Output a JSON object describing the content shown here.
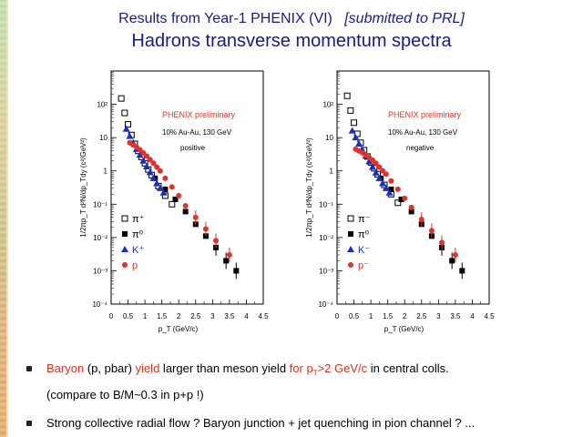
{
  "slide": {
    "title_line1_main": "Results from Year-1 PHENIX (VI)",
    "title_line1_submitted": "[submitted to PRL]",
    "title_line2": "Hadrons transverse momentum spectra"
  },
  "bullets": {
    "b1_part1": "Baryon",
    "b1_part2": " (p, pbar) ",
    "b1_part3": "yield",
    "b1_part4": " larger than meson yield ",
    "b1_part5_pre": "for p",
    "b1_part5_sub": "T",
    "b1_part5_post": ">2 GeV/c",
    "b1_part6": " in central colls.",
    "b1_line2": "(compare to B/M~0.3 in p+p !)",
    "b2": "Strong collective radial flow ? Baryon junction + jet quenching in pion channel ? ..."
  },
  "colors": {
    "title": "#1a1a8c",
    "red": "#e0322a",
    "blue": "#1a2fbf",
    "black": "#000000"
  },
  "chart_data": [
    {
      "type": "scatter",
      "panel": "positive",
      "title": "PHENIX preliminary",
      "condition": "10% Au-Au, 130 GeV",
      "charge_label": "positive",
      "xlabel": "p_T (GeV/c)",
      "ylabel": "1/2πp_T d²N/dp_Tdy (c²/GeV²)",
      "xlim": [
        0,
        4.5
      ],
      "ylim": [
        0.0001,
        1000
      ],
      "yscale": "log",
      "xticks": [
        "0",
        "0.5",
        "1",
        "1.5",
        "2",
        "2.5",
        "3",
        "3.5",
        "4",
        "4.5"
      ],
      "yticks": [
        "10⁻⁴",
        "10⁻³",
        "10⁻²",
        "10⁻¹",
        "1",
        "10",
        "10²"
      ],
      "series": [
        {
          "name": "π⁺",
          "marker": "open-square",
          "color": "#000000",
          "x": [
            0.3,
            0.4,
            0.5,
            0.6,
            0.7,
            0.8,
            0.9,
            1.0,
            1.1,
            1.2,
            1.4,
            1.6,
            1.8
          ],
          "y": [
            150,
            55,
            25,
            12,
            6.5,
            4.0,
            2.6,
            1.7,
            1.1,
            0.75,
            0.35,
            0.18,
            0.1
          ]
        },
        {
          "name": "π⁰",
          "marker": "filled-square",
          "color": "#000000",
          "x": [
            1.3,
            1.6,
            1.9,
            2.2,
            2.5,
            2.8,
            3.1,
            3.4,
            3.7
          ],
          "y": [
            0.6,
            0.28,
            0.14,
            0.06,
            0.025,
            0.011,
            0.005,
            0.002,
            0.001
          ]
        },
        {
          "name": "K⁺",
          "marker": "filled-triangle",
          "color": "#1a2fbf",
          "x": [
            0.45,
            0.55,
            0.65,
            0.75,
            0.85,
            0.95,
            1.05,
            1.15,
            1.25,
            1.35,
            1.45,
            1.55
          ],
          "y": [
            18,
            11,
            7.0,
            4.5,
            3.0,
            2.0,
            1.35,
            0.9,
            0.6,
            0.42,
            0.3,
            0.22
          ]
        },
        {
          "name": "p",
          "marker": "filled-circle",
          "color": "#e0322a",
          "x": [
            0.55,
            0.65,
            0.75,
            0.85,
            0.95,
            1.05,
            1.15,
            1.25,
            1.35,
            1.45,
            1.6,
            1.8,
            2.0,
            2.2,
            2.5,
            2.8,
            3.1,
            3.5
          ],
          "y": [
            7.0,
            6.0,
            5.2,
            4.3,
            3.5,
            2.8,
            2.2,
            1.7,
            1.3,
            1.0,
            0.6,
            0.33,
            0.18,
            0.09,
            0.04,
            0.018,
            0.008,
            0.003
          ]
        }
      ]
    },
    {
      "type": "scatter",
      "panel": "negative",
      "title": "PHENIX preliminary",
      "condition": "10% Au-Au, 130 GeV",
      "charge_label": "negative",
      "xlabel": "p_T (GeV/c)",
      "ylabel": "1/2πp_T d²N/dp_Tdy (c²/GeV²)",
      "xlim": [
        0,
        4.5
      ],
      "ylim": [
        0.0001,
        1000
      ],
      "yscale": "log",
      "xticks": [
        "0",
        "0.5",
        "1",
        "1.5",
        "2",
        "2.5",
        "3",
        "3.5",
        "4",
        "4.5"
      ],
      "yticks": [
        "10⁻⁴",
        "10⁻³",
        "10⁻²",
        "10⁻¹",
        "1",
        "10",
        "10²"
      ],
      "series": [
        {
          "name": "π⁻",
          "marker": "open-square",
          "color": "#000000",
          "x": [
            0.3,
            0.4,
            0.5,
            0.6,
            0.7,
            0.8,
            0.9,
            1.0,
            1.1,
            1.2,
            1.4,
            1.6,
            1.8
          ],
          "y": [
            180,
            65,
            28,
            13,
            7.0,
            4.2,
            2.7,
            1.8,
            1.2,
            0.8,
            0.38,
            0.2,
            0.11
          ]
        },
        {
          "name": "π⁰",
          "marker": "filled-square",
          "color": "#000000",
          "x": [
            1.3,
            1.6,
            1.9,
            2.2,
            2.5,
            2.8,
            3.1,
            3.4,
            3.7
          ],
          "y": [
            0.6,
            0.28,
            0.14,
            0.06,
            0.025,
            0.011,
            0.005,
            0.002,
            0.001
          ]
        },
        {
          "name": "K⁻",
          "marker": "filled-triangle",
          "color": "#1a2fbf",
          "x": [
            0.45,
            0.55,
            0.65,
            0.75,
            0.85,
            0.95,
            1.05,
            1.15,
            1.25,
            1.35,
            1.45,
            1.55
          ],
          "y": [
            16,
            10,
            6.5,
            4.2,
            2.8,
            1.9,
            1.3,
            0.88,
            0.6,
            0.42,
            0.3,
            0.22
          ]
        },
        {
          "name": "p⁻",
          "marker": "filled-circle",
          "color": "#e0322a",
          "x": [
            0.55,
            0.65,
            0.75,
            0.85,
            0.95,
            1.05,
            1.15,
            1.25,
            1.35,
            1.45,
            1.6,
            1.8,
            2.0,
            2.2,
            2.5,
            2.8,
            3.1,
            3.5
          ],
          "y": [
            4.5,
            4.0,
            3.5,
            3.0,
            2.5,
            2.1,
            1.7,
            1.3,
            1.0,
            0.8,
            0.5,
            0.28,
            0.15,
            0.08,
            0.035,
            0.016,
            0.007,
            0.003
          ]
        }
      ]
    }
  ]
}
